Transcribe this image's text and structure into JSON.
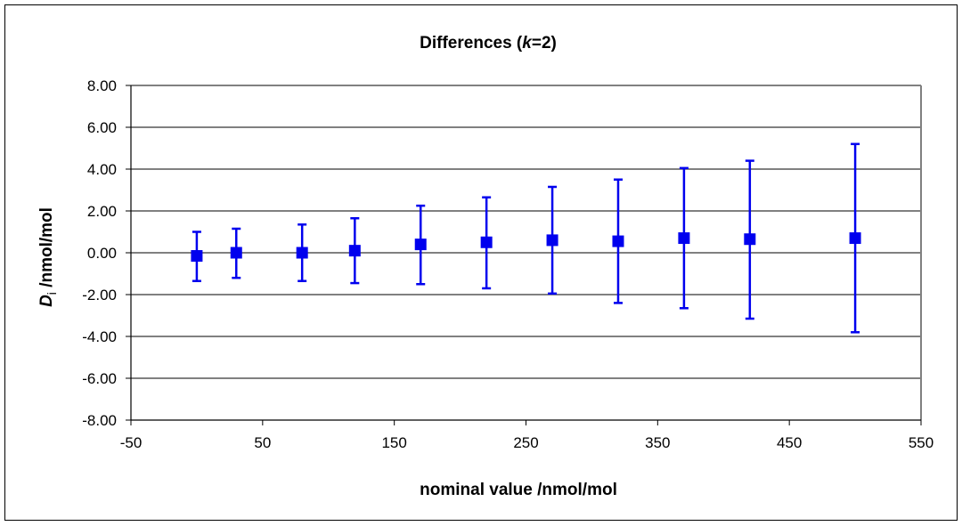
{
  "chart_data": {
    "type": "scatter",
    "title_main": "Differences (",
    "title_k": "k",
    "title_tail": "=2)",
    "xlabel": "nominal value /nmol/mol",
    "ylabel_symbol": "D",
    "ylabel_sub": "i",
    "ylabel_unit": " /nmol/mol",
    "xlim": [
      -50,
      550
    ],
    "ylim": [
      -8,
      8
    ],
    "xticks": [
      -50,
      50,
      150,
      250,
      350,
      450,
      550
    ],
    "yticks": [
      8,
      6,
      4,
      2,
      0,
      -2,
      -4,
      -6,
      -8
    ],
    "ytick_labels": [
      "8.00",
      "6.00",
      "4.00",
      "2.00",
      "0.00",
      "-2.00",
      "-4.00",
      "-6.00",
      "-8.00"
    ],
    "grid": true,
    "marker_color": "#0000ee",
    "points": [
      {
        "x": 0,
        "y": -0.15,
        "lower": -1.35,
        "upper": 1.0
      },
      {
        "x": 30,
        "y": 0.0,
        "lower": -1.2,
        "upper": 1.15
      },
      {
        "x": 80,
        "y": 0.0,
        "lower": -1.35,
        "upper": 1.35
      },
      {
        "x": 120,
        "y": 0.1,
        "lower": -1.45,
        "upper": 1.65
      },
      {
        "x": 170,
        "y": 0.4,
        "lower": -1.5,
        "upper": 2.25
      },
      {
        "x": 220,
        "y": 0.5,
        "lower": -1.7,
        "upper": 2.65
      },
      {
        "x": 270,
        "y": 0.6,
        "lower": -1.95,
        "upper": 3.15
      },
      {
        "x": 320,
        "y": 0.55,
        "lower": -2.4,
        "upper": 3.5
      },
      {
        "x": 370,
        "y": 0.7,
        "lower": -2.65,
        "upper": 4.05
      },
      {
        "x": 420,
        "y": 0.65,
        "lower": -3.15,
        "upper": 4.4
      },
      {
        "x": 500,
        "y": 0.7,
        "lower": -3.8,
        "upper": 5.2
      }
    ]
  }
}
